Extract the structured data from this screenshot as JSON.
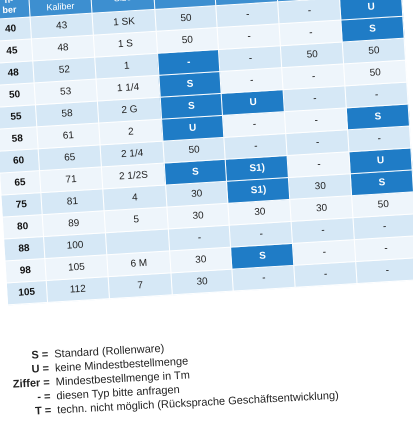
{
  "table": {
    "header": [
      "n-\nber",
      "Füll-\nKaliber",
      "Size",
      "r",
      null,
      null,
      null
    ],
    "rows": [
      [
        "40",
        "43",
        "1 SK",
        "50",
        "-",
        "-",
        "U"
      ],
      [
        "45",
        "48",
        "1 S",
        "50",
        "-",
        "-",
        "S"
      ],
      [
        "48",
        "52",
        "1",
        "-",
        "-",
        "50",
        "50"
      ],
      [
        "50",
        "53",
        "1 1/4",
        "S",
        "-",
        "-",
        "50"
      ],
      [
        "55",
        "58",
        "2 G",
        "S",
        "U",
        "-",
        "-"
      ],
      [
        "58",
        "61",
        "2",
        "U",
        "-",
        "-",
        "S"
      ],
      [
        "60",
        "65",
        "2 1/4",
        "50",
        "-",
        "-",
        "-"
      ],
      [
        "65",
        "71",
        "2 1/2S",
        "S",
        "S1)",
        "-",
        "U"
      ],
      [
        "75",
        "81",
        "4",
        "30",
        "S1)",
        "30",
        "S"
      ],
      [
        "80",
        "89",
        "5",
        "30",
        "30",
        "30",
        "50"
      ],
      [
        "88",
        "100",
        null,
        "-",
        "-",
        "-",
        "-"
      ],
      [
        "98",
        "105",
        "6 M",
        "30",
        "S",
        "-",
        "-"
      ],
      [
        "105",
        "112",
        "7",
        "30",
        "-",
        "-",
        "-"
      ]
    ],
    "highlighted": [
      [
        0,
        6
      ],
      [
        1,
        6
      ],
      [
        2,
        3
      ],
      [
        3,
        3
      ],
      [
        4,
        3
      ],
      [
        4,
        4
      ],
      [
        5,
        3
      ],
      [
        5,
        6
      ],
      [
        7,
        3
      ],
      [
        7,
        4
      ],
      [
        7,
        6
      ],
      [
        8,
        4
      ],
      [
        8,
        6
      ],
      [
        11,
        4
      ]
    ],
    "highlight_color": "#1f7cc6"
  },
  "legend": {
    "items": [
      {
        "symbol": "S =",
        "text": "Standard (Rollenware)"
      },
      {
        "symbol": "U =",
        "text": "keine Mindestbestellmenge"
      },
      {
        "symbol": "Ziffer =",
        "text": "Mindestbestellmenge in Tm"
      },
      {
        "symbol": "- =",
        "text": "diesen Typ bitte anfragen"
      },
      {
        "symbol": "T =",
        "text": "techn. nicht möglich (Rücksprache Geschäftsentwicklung)"
      }
    ]
  }
}
